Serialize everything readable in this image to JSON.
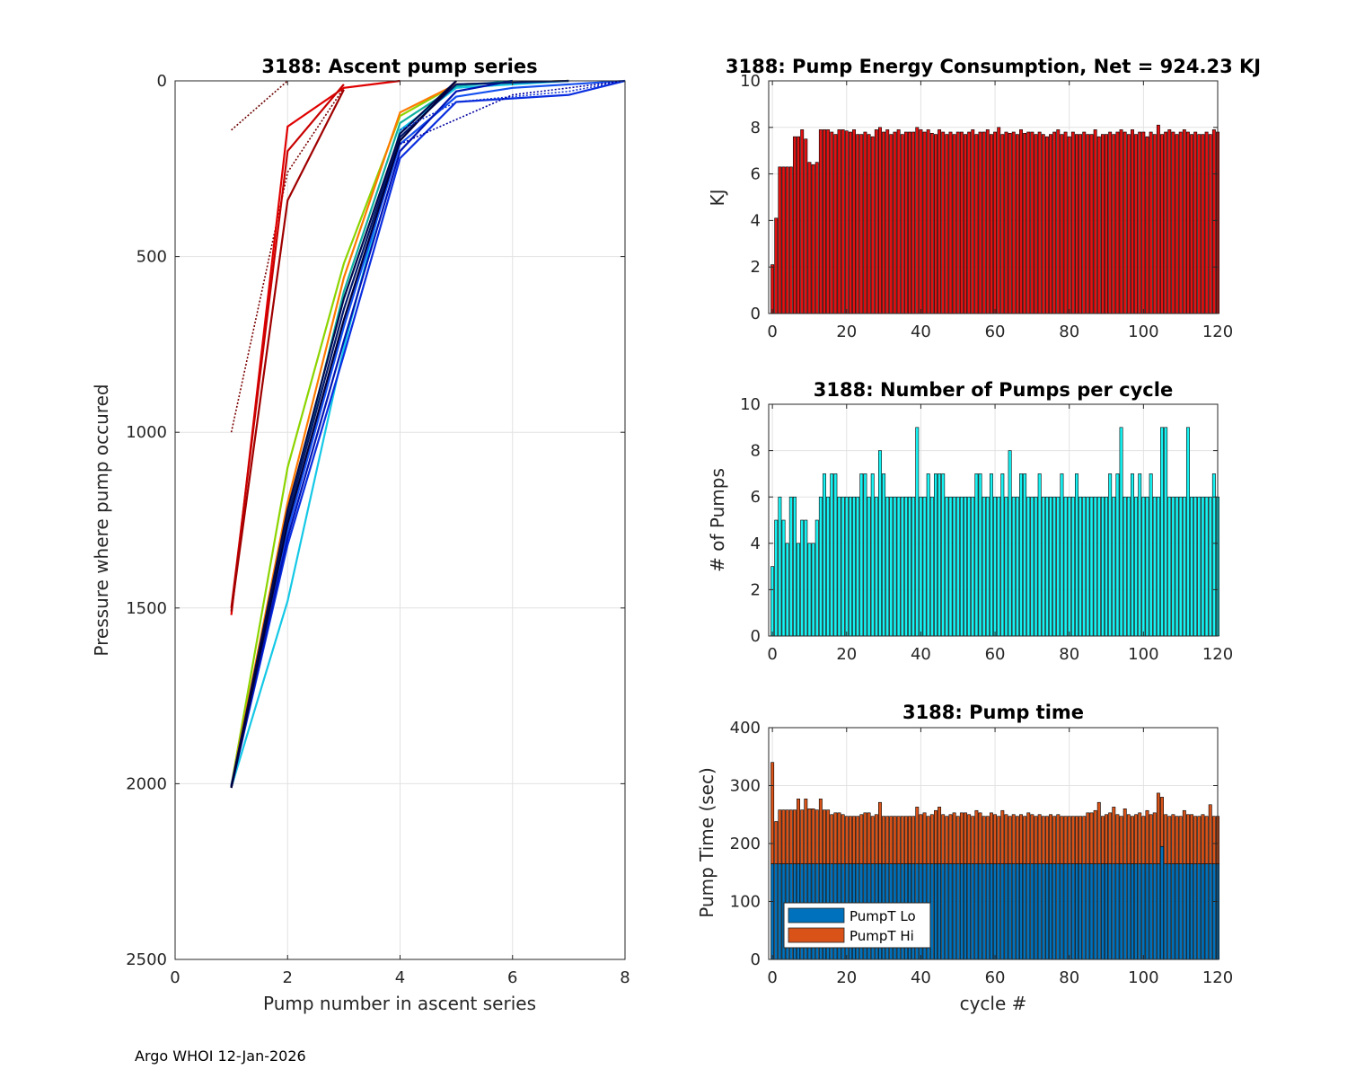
{
  "footer": "Argo WHOI 12-Jan-2026",
  "chart_data": [
    {
      "id": "ascent",
      "type": "line",
      "title": "3188: Ascent pump series",
      "xlabel": "Pump number in ascent series",
      "ylabel": "Pressure where pump occured",
      "xlim": [
        0,
        8
      ],
      "ylim": [
        0,
        2500
      ],
      "y_reversed": true,
      "xticks": [
        0,
        2,
        4,
        6,
        8
      ],
      "yticks": [
        0,
        500,
        1000,
        1500,
        2000,
        2500
      ],
      "series": [
        {
          "name": "early-1",
          "color": "#6b0000",
          "dotted": true,
          "x": [
            1,
            2
          ],
          "y": [
            140,
            0
          ]
        },
        {
          "name": "early-2",
          "color": "#7a0000",
          "dotted": true,
          "x": [
            1,
            2,
            3,
            4
          ],
          "y": [
            1000,
            260,
            20,
            0
          ]
        },
        {
          "name": "early-3",
          "color": "#e00000",
          "dotted": false,
          "x": [
            1,
            2,
            3,
            4
          ],
          "y": [
            1520,
            130,
            20,
            0
          ]
        },
        {
          "name": "early-4",
          "color": "#c80000",
          "dotted": false,
          "x": [
            1,
            2,
            3
          ],
          "y": [
            1500,
            200,
            10
          ]
        },
        {
          "name": "early-5",
          "color": "#a00000",
          "dotted": false,
          "x": [
            1,
            2,
            3
          ],
          "y": [
            1510,
            340,
            25
          ]
        },
        {
          "name": "s-green",
          "color": "#8cd400",
          "dotted": false,
          "x": [
            1,
            2,
            3,
            4,
            5,
            7
          ],
          "y": [
            2005,
            1100,
            520,
            100,
            10,
            0
          ]
        },
        {
          "name": "s-orange",
          "color": "#ff7a00",
          "dotted": false,
          "x": [
            1,
            2,
            3,
            4,
            5,
            7
          ],
          "y": [
            2005,
            1200,
            560,
            90,
            10,
            0
          ]
        },
        {
          "name": "s-cyan",
          "color": "#14c8e6",
          "dotted": false,
          "x": [
            1,
            2,
            3,
            4,
            5,
            7
          ],
          "y": [
            2010,
            1480,
            760,
            140,
            20,
            0
          ]
        },
        {
          "name": "s-teal",
          "color": "#10b0a0",
          "dotted": false,
          "x": [
            1,
            2,
            3,
            4,
            5,
            6
          ],
          "y": [
            2005,
            1250,
            600,
            120,
            15,
            0
          ]
        },
        {
          "name": "s-blue-1",
          "color": "#0a2ee0",
          "dotted": false,
          "x": [
            1,
            2,
            3,
            4,
            5,
            7,
            8
          ],
          "y": [
            2010,
            1320,
            780,
            220,
            60,
            40,
            0
          ]
        },
        {
          "name": "s-blue-2",
          "color": "#1450f0",
          "dotted": false,
          "x": [
            1,
            2,
            3,
            4,
            5,
            6,
            8
          ],
          "y": [
            2005,
            1280,
            700,
            180,
            45,
            20,
            0
          ]
        },
        {
          "name": "s-blue-3",
          "color": "#0014b4",
          "dotted": false,
          "x": [
            1,
            2,
            3,
            4,
            5,
            6
          ],
          "y": [
            2010,
            1300,
            740,
            200,
            30,
            0
          ]
        },
        {
          "name": "s-navy-1",
          "color": "#00186e",
          "dotted": false,
          "x": [
            1,
            2,
            3,
            4,
            5,
            7
          ],
          "y": [
            2008,
            1240,
            650,
            160,
            10,
            0
          ]
        },
        {
          "name": "s-navy-2",
          "color": "#000a50",
          "dotted": false,
          "x": [
            1,
            2,
            3,
            4,
            5
          ],
          "y": [
            2010,
            1220,
            620,
            150,
            0
          ]
        },
        {
          "name": "s-black",
          "color": "#00003c",
          "dotted": false,
          "x": [
            1,
            2,
            3,
            4,
            5
          ],
          "y": [
            2012,
            1260,
            680,
            170,
            0
          ]
        },
        {
          "name": "s-dot-1",
          "color": "#1030d0",
          "dotted": true,
          "x": [
            4,
            5,
            7,
            8
          ],
          "y": [
            140,
            60,
            30,
            0
          ]
        },
        {
          "name": "s-dot-2",
          "color": "#0000a0",
          "dotted": true,
          "x": [
            4,
            5,
            6,
            8
          ],
          "y": [
            180,
            110,
            40,
            0
          ]
        }
      ]
    },
    {
      "id": "energy",
      "type": "bar",
      "title": "3188: Pump Energy Consumption,  Net = 924.23 KJ",
      "xlabel": "",
      "ylabel": "KJ",
      "xlim": [
        -1,
        120
      ],
      "ylim": [
        0,
        10
      ],
      "xticks": [
        0,
        20,
        40,
        60,
        80,
        100,
        120
      ],
      "yticks": [
        0,
        2,
        4,
        6,
        8,
        10
      ],
      "bar_color": "#e31212",
      "values": [
        2.1,
        4.1,
        6.3,
        6.3,
        6.3,
        6.3,
        7.6,
        7.6,
        7.9,
        7.5,
        6.5,
        6.4,
        6.5,
        7.9,
        7.9,
        7.9,
        7.8,
        7.7,
        7.9,
        7.9,
        7.85,
        7.8,
        7.9,
        7.7,
        7.7,
        7.8,
        7.7,
        7.6,
        7.9,
        8.0,
        7.8,
        7.9,
        7.7,
        7.8,
        7.9,
        7.7,
        7.8,
        7.8,
        7.8,
        8.0,
        7.9,
        7.8,
        7.9,
        7.75,
        7.7,
        7.9,
        7.8,
        7.7,
        7.8,
        7.7,
        7.8,
        7.8,
        7.7,
        7.8,
        7.9,
        7.7,
        7.8,
        7.8,
        7.9,
        7.7,
        7.8,
        8.0,
        7.7,
        7.8,
        7.75,
        7.8,
        7.7,
        7.9,
        7.75,
        7.8,
        7.8,
        7.7,
        7.8,
        7.7,
        7.6,
        7.7,
        7.8,
        7.9,
        7.7,
        7.8,
        7.6,
        7.8,
        7.7,
        7.7,
        7.8,
        7.7,
        7.7,
        7.9,
        7.6,
        7.7,
        7.7,
        7.8,
        7.7,
        7.8,
        7.9,
        7.8,
        7.7,
        7.9,
        7.7,
        7.8,
        7.8,
        7.6,
        7.8,
        7.7,
        8.1,
        7.7,
        7.8,
        7.9,
        7.8,
        7.7,
        7.8,
        7.9,
        7.8,
        7.7,
        7.8,
        7.7,
        7.7,
        7.8,
        7.7,
        7.9,
        7.8
      ]
    },
    {
      "id": "pumps",
      "type": "bar",
      "title": "3188: Number of Pumps per cycle",
      "xlabel": "",
      "ylabel": "# of Pumps",
      "xlim": [
        -1,
        120
      ],
      "ylim": [
        0,
        10
      ],
      "xticks": [
        0,
        20,
        40,
        60,
        80,
        100,
        120
      ],
      "yticks": [
        0,
        2,
        4,
        6,
        8,
        10
      ],
      "bar_color": "#17f2f2",
      "values": [
        3,
        5,
        6,
        5,
        4,
        6,
        6,
        4,
        5,
        5,
        4,
        4,
        5,
        6,
        7,
        6,
        7,
        7,
        6,
        6,
        6,
        6,
        6,
        6,
        7,
        7,
        6,
        7,
        6,
        8,
        7,
        6,
        6,
        6,
        6,
        6,
        6,
        6,
        6,
        9,
        6,
        6,
        7,
        6,
        7,
        7,
        7,
        6,
        6,
        6,
        6,
        6,
        6,
        6,
        6,
        7,
        7,
        6,
        6,
        7,
        6,
        6,
        7,
        6,
        8,
        6,
        6,
        7,
        7,
        6,
        6,
        6,
        7,
        6,
        6,
        6,
        6,
        6,
        7,
        6,
        6,
        6,
        7,
        6,
        6,
        6,
        6,
        6,
        6,
        6,
        6,
        7,
        6,
        7,
        9,
        6,
        6,
        7,
        6,
        7,
        6,
        6,
        7,
        6,
        6,
        9,
        9,
        6,
        6,
        6,
        6,
        6,
        9,
        6,
        6,
        6,
        6,
        6,
        6,
        7,
        6
      ]
    },
    {
      "id": "pumptime",
      "type": "bar",
      "stacked": true,
      "title": "3188: Pump time",
      "xlabel": "cycle #",
      "ylabel": "Pump Time (sec)",
      "xlim": [
        -1,
        120
      ],
      "ylim": [
        0,
        400
      ],
      "xticks": [
        0,
        20,
        40,
        60,
        80,
        100,
        120
      ],
      "yticks": [
        0,
        100,
        200,
        300,
        400
      ],
      "legend_position": "bottom-left",
      "series": [
        {
          "name": "PumpT Lo",
          "color": "#0072bd",
          "values": [
            165,
            165,
            165,
            165,
            165,
            165,
            165,
            165,
            165,
            165,
            165,
            165,
            165,
            165,
            165,
            165,
            165,
            165,
            165,
            165,
            165,
            165,
            165,
            165,
            165,
            165,
            165,
            165,
            165,
            165,
            165,
            165,
            165,
            165,
            165,
            165,
            165,
            165,
            165,
            165,
            165,
            165,
            165,
            165,
            165,
            165,
            165,
            165,
            165,
            165,
            165,
            165,
            165,
            165,
            165,
            165,
            165,
            165,
            165,
            165,
            165,
            165,
            165,
            165,
            165,
            165,
            165,
            165,
            165,
            165,
            165,
            165,
            165,
            165,
            165,
            165,
            165,
            165,
            165,
            165,
            165,
            165,
            165,
            165,
            165,
            165,
            165,
            165,
            165,
            165,
            165,
            165,
            165,
            165,
            165,
            165,
            165,
            165,
            165,
            165,
            165,
            165,
            165,
            165,
            165,
            195,
            165,
            165,
            165,
            165,
            165,
            165,
            165,
            165,
            165,
            165,
            165,
            165,
            165,
            165,
            165
          ]
        },
        {
          "name": "PumpT Hi",
          "color": "#d95319",
          "values": [
            175,
            73,
            93,
            93,
            93,
            93,
            93,
            112,
            93,
            112,
            95,
            95,
            93,
            112,
            93,
            93,
            85,
            88,
            88,
            85,
            82,
            82,
            82,
            82,
            85,
            88,
            88,
            82,
            85,
            106,
            82,
            82,
            82,
            82,
            82,
            82,
            82,
            82,
            82,
            98,
            85,
            88,
            82,
            85,
            92,
            98,
            85,
            82,
            85,
            88,
            82,
            88,
            88,
            85,
            82,
            92,
            88,
            82,
            82,
            88,
            85,
            82,
            92,
            85,
            82,
            85,
            82,
            85,
            82,
            88,
            85,
            82,
            85,
            82,
            82,
            85,
            82,
            85,
            82,
            82,
            82,
            82,
            82,
            82,
            82,
            88,
            88,
            92,
            106,
            82,
            85,
            88,
            98,
            85,
            82,
            95,
            85,
            82,
            85,
            88,
            82,
            92,
            85,
            88,
            122,
            85,
            85,
            82,
            85,
            82,
            82,
            92,
            85,
            85,
            82,
            82,
            85,
            82,
            102,
            82,
            82
          ]
        }
      ]
    }
  ]
}
